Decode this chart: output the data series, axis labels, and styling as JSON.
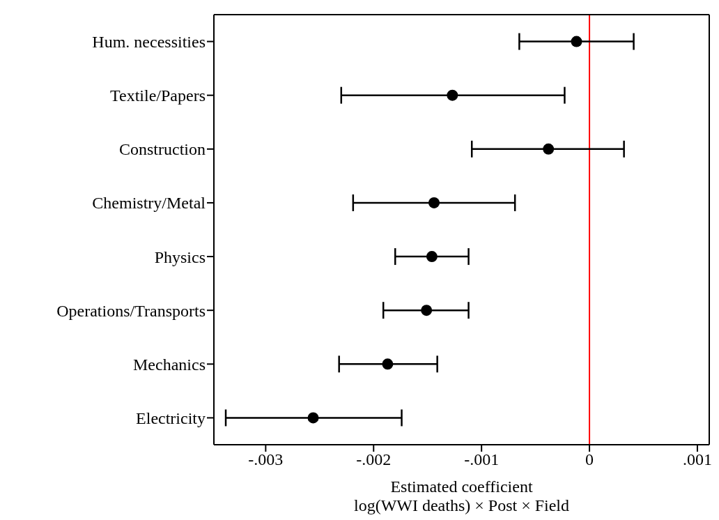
{
  "chart_data": {
    "type": "scatter",
    "orientation": "horizontal",
    "xlabel": "Estimated coefficient\nlog(WWI deaths) × Post × Field",
    "categories": [
      "Hum. necessities",
      "Textile/Papers",
      "Construction",
      "Chemistry/Metal",
      "Physics",
      "Operations/Transports",
      "Mechanics",
      "Electricity"
    ],
    "values": [
      -0.00012,
      -0.00127,
      -0.00038,
      -0.00144,
      -0.00146,
      -0.00151,
      -0.00187,
      -0.00256
    ],
    "errors": [
      [
        -0.00065,
        0.00041
      ],
      [
        -0.0023,
        -0.00023
      ],
      [
        -0.00109,
        0.00032
      ],
      [
        -0.00219,
        -0.00069
      ],
      [
        -0.0018,
        -0.00112
      ],
      [
        -0.00191,
        -0.00112
      ],
      [
        -0.00232,
        -0.00141
      ],
      [
        -0.00337,
        -0.00174
      ]
    ],
    "color": "#000000",
    "marker": "circle",
    "grid": false,
    "legend": false,
    "xlim": [
      -0.00348,
      0.00111
    ],
    "xticks": [
      {
        "value": -0.003,
        "label": "-.003"
      },
      {
        "value": -0.002,
        "label": "-.002"
      },
      {
        "value": -0.001,
        "label": "-.001"
      },
      0,
      {
        "value": 0.001,
        "label": ".001"
      }
    ],
    "ref_lines": [
      {
        "axis": "x",
        "value": 0,
        "color": "#ff0000",
        "line_style": "solid"
      }
    ]
  }
}
